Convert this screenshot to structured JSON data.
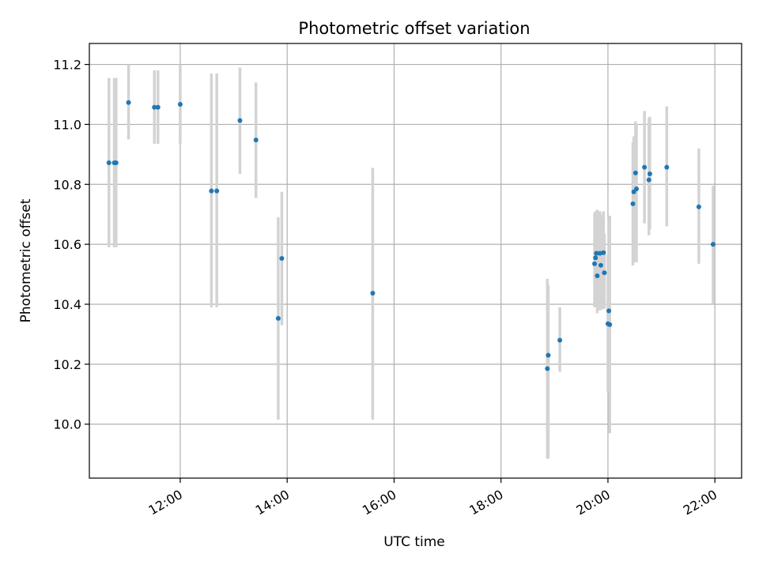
{
  "chart_data": {
    "type": "scatter",
    "title": "Photometric offset variation",
    "xlabel": "UTC time",
    "ylabel": "Photometric offset",
    "xlim": [
      "10:18",
      "22:30"
    ],
    "ylim": [
      9.82,
      11.27
    ],
    "grid": true,
    "x_ticks": [
      "12:00",
      "14:00",
      "16:00",
      "18:00",
      "20:00",
      "22:00"
    ],
    "y_ticks": [
      "10.0",
      "10.2",
      "10.4",
      "10.6",
      "10.8",
      "11.0",
      "11.2"
    ],
    "point_color": "#1f77b4",
    "errorbar_color": "#d3d3d3",
    "points": [
      {
        "x": "10:40",
        "y": 10.872,
        "low": 10.59,
        "high": 11.155
      },
      {
        "x": "10:46",
        "y": 10.872,
        "low": 10.59,
        "high": 11.155
      },
      {
        "x": "10:48",
        "y": 10.872,
        "low": 10.59,
        "high": 11.155
      },
      {
        "x": "11:02",
        "y": 11.073,
        "low": 10.95,
        "high": 11.2
      },
      {
        "x": "11:31",
        "y": 11.057,
        "low": 10.935,
        "high": 11.18
      },
      {
        "x": "11:35",
        "y": 11.057,
        "low": 10.935,
        "high": 11.18
      },
      {
        "x": "12:00",
        "y": 11.067,
        "low": 10.935,
        "high": 11.2
      },
      {
        "x": "12:35",
        "y": 10.778,
        "low": 10.39,
        "high": 11.17
      },
      {
        "x": "12:41",
        "y": 10.778,
        "low": 10.39,
        "high": 11.17
      },
      {
        "x": "13:07",
        "y": 11.013,
        "low": 10.835,
        "high": 11.19
      },
      {
        "x": "13:25",
        "y": 10.948,
        "low": 10.755,
        "high": 11.14
      },
      {
        "x": "13:50",
        "y": 10.353,
        "low": 10.015,
        "high": 10.69
      },
      {
        "x": "13:54",
        "y": 10.553,
        "low": 10.33,
        "high": 10.775
      },
      {
        "x": "15:36",
        "y": 10.437,
        "low": 10.015,
        "high": 10.855
      },
      {
        "x": "18:52",
        "y": 10.185,
        "low": 9.885,
        "high": 10.485
      },
      {
        "x": "18:53",
        "y": 10.23,
        "low": 9.885,
        "high": 10.465
      },
      {
        "x": "19:06",
        "y": 10.28,
        "low": 10.175,
        "high": 10.39
      },
      {
        "x": "19:45",
        "y": 10.535,
        "low": 10.39,
        "high": 10.705
      },
      {
        "x": "19:46",
        "y": 10.555,
        "low": 10.39,
        "high": 10.71
      },
      {
        "x": "19:47",
        "y": 10.57,
        "low": 10.39,
        "high": 10.71
      },
      {
        "x": "19:48",
        "y": 10.495,
        "low": 10.37,
        "high": 10.715
      },
      {
        "x": "19:51",
        "y": 10.57,
        "low": 10.38,
        "high": 10.71
      },
      {
        "x": "19:52",
        "y": 10.53,
        "low": 10.38,
        "high": 10.7
      },
      {
        "x": "19:55",
        "y": 10.572,
        "low": 10.385,
        "high": 10.71
      },
      {
        "x": "19:56",
        "y": 10.505,
        "low": 10.385,
        "high": 10.635
      },
      {
        "x": "20:00",
        "y": 10.335,
        "low": 10.105,
        "high": 10.565
      },
      {
        "x": "20:01",
        "y": 10.378,
        "low": 10.11,
        "high": 10.69
      },
      {
        "x": "20:02",
        "y": 10.332,
        "low": 9.97,
        "high": 10.695
      },
      {
        "x": "20:28",
        "y": 10.735,
        "low": 10.53,
        "high": 10.94
      },
      {
        "x": "20:29",
        "y": 10.775,
        "low": 10.54,
        "high": 10.96
      },
      {
        "x": "20:31",
        "y": 10.838,
        "low": 10.66,
        "high": 11.01
      },
      {
        "x": "20:32",
        "y": 10.785,
        "low": 10.54,
        "high": 11.0
      },
      {
        "x": "20:41",
        "y": 10.857,
        "low": 10.67,
        "high": 11.045
      },
      {
        "x": "20:46",
        "y": 10.815,
        "low": 10.63,
        "high": 11.02
      },
      {
        "x": "20:47",
        "y": 10.835,
        "low": 10.65,
        "high": 11.025
      },
      {
        "x": "21:06",
        "y": 10.857,
        "low": 10.66,
        "high": 11.06
      },
      {
        "x": "21:42",
        "y": 10.725,
        "low": 10.535,
        "high": 10.92
      },
      {
        "x": "21:58",
        "y": 10.6,
        "low": 10.4,
        "high": 10.795
      }
    ]
  }
}
